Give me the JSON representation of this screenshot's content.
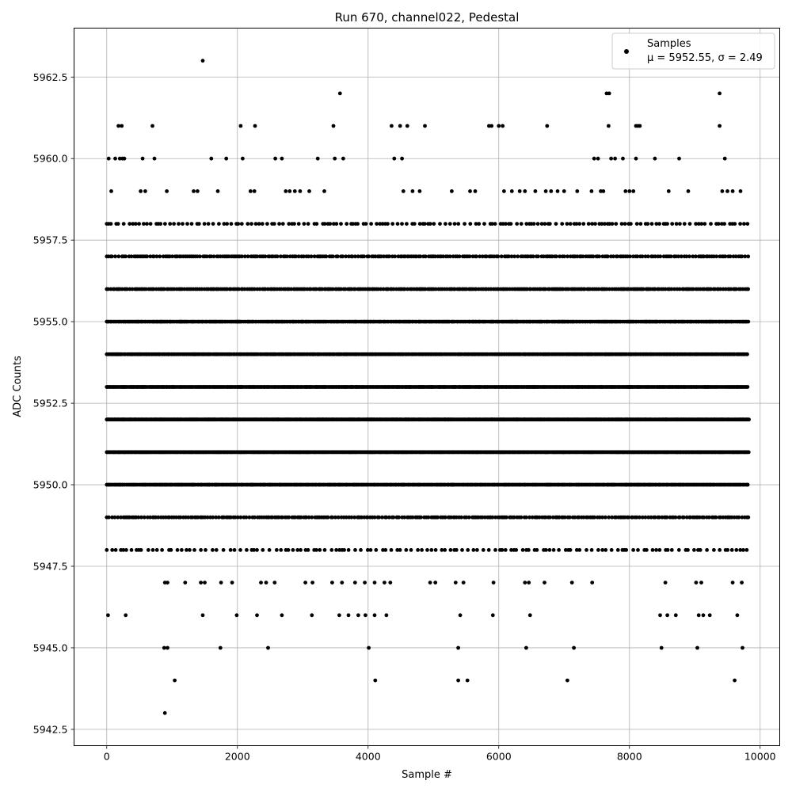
{
  "chart_data": {
    "type": "scatter",
    "title": "Run 670, channel022, Pedestal",
    "xlabel": "Sample #",
    "ylabel": "ADC Counts",
    "xlim": [
      -500,
      10300
    ],
    "ylim": [
      5942,
      5964
    ],
    "x_ticks": [
      0,
      2000,
      4000,
      6000,
      8000,
      10000
    ],
    "x_tick_labels": [
      "0",
      "2000",
      "4000",
      "6000",
      "8000",
      "10000"
    ],
    "y_ticks": [
      5942.5,
      5945.0,
      5947.5,
      5950.0,
      5952.5,
      5955.0,
      5957.5,
      5960.0,
      5962.5
    ],
    "y_tick_labels": [
      "5942.5",
      "5945.0",
      "5947.5",
      "5950.0",
      "5952.5",
      "5955.0",
      "5957.5",
      "5960.0",
      "5962.5"
    ],
    "grid": true,
    "legend": {
      "position": "top-right",
      "series_name": "Samples",
      "stats_text": "μ = 5952.55, σ = 2.49"
    },
    "series": [
      {
        "name": "Samples",
        "color": "#000000",
        "n_samples": 9830,
        "mean": 5952.55,
        "sigma": 2.49,
        "level_counts": [
          {
            "y": 5951,
            "x_step": 12
          },
          {
            "y": 5952,
            "x_step": 12
          },
          {
            "y": 5953,
            "x_step": 16
          },
          {
            "y": 5950,
            "x_step": 18
          },
          {
            "y": 5954,
            "x_step": 20
          },
          {
            "y": 5955,
            "x_step": 20
          },
          {
            "y": 5956,
            "x_step": 28
          },
          {
            "y": 5949,
            "x_step": 32
          },
          {
            "y": 5957,
            "x_step": 34
          },
          {
            "y": 5948,
            "x_step": 70
          },
          {
            "y": 5958,
            "x_step": 60
          }
        ],
        "points": [
          {
            "x": 1470,
            "y": 5963
          },
          {
            "x": 3570,
            "y": 5962
          },
          {
            "x": 7650,
            "y": 5962
          },
          {
            "x": 7690,
            "y": 5962
          },
          {
            "x": 9380,
            "y": 5962
          },
          {
            "x": 180,
            "y": 5961
          },
          {
            "x": 230,
            "y": 5961
          },
          {
            "x": 700,
            "y": 5961
          },
          {
            "x": 2050,
            "y": 5961
          },
          {
            "x": 2270,
            "y": 5961
          },
          {
            "x": 3470,
            "y": 5961
          },
          {
            "x": 4360,
            "y": 5961
          },
          {
            "x": 4490,
            "y": 5961
          },
          {
            "x": 4600,
            "y": 5961
          },
          {
            "x": 4870,
            "y": 5961
          },
          {
            "x": 5850,
            "y": 5961
          },
          {
            "x": 5890,
            "y": 5961
          },
          {
            "x": 6000,
            "y": 5961
          },
          {
            "x": 6060,
            "y": 5961
          },
          {
            "x": 6740,
            "y": 5961
          },
          {
            "x": 7680,
            "y": 5961
          },
          {
            "x": 8100,
            "y": 5961
          },
          {
            "x": 8130,
            "y": 5961
          },
          {
            "x": 8160,
            "y": 5961
          },
          {
            "x": 9380,
            "y": 5961
          },
          {
            "x": 30,
            "y": 5960
          },
          {
            "x": 130,
            "y": 5960
          },
          {
            "x": 200,
            "y": 5960
          },
          {
            "x": 240,
            "y": 5960
          },
          {
            "x": 270,
            "y": 5960
          },
          {
            "x": 550,
            "y": 5960
          },
          {
            "x": 730,
            "y": 5960
          },
          {
            "x": 1600,
            "y": 5960
          },
          {
            "x": 1830,
            "y": 5960
          },
          {
            "x": 2080,
            "y": 5960
          },
          {
            "x": 2580,
            "y": 5960
          },
          {
            "x": 2680,
            "y": 5960
          },
          {
            "x": 3230,
            "y": 5960
          },
          {
            "x": 3490,
            "y": 5960
          },
          {
            "x": 3620,
            "y": 5960
          },
          {
            "x": 4400,
            "y": 5960
          },
          {
            "x": 4520,
            "y": 5960
          },
          {
            "x": 7460,
            "y": 5960
          },
          {
            "x": 7520,
            "y": 5960
          },
          {
            "x": 7720,
            "y": 5960
          },
          {
            "x": 7780,
            "y": 5960
          },
          {
            "x": 7900,
            "y": 5960
          },
          {
            "x": 8100,
            "y": 5960
          },
          {
            "x": 8390,
            "y": 5960
          },
          {
            "x": 8760,
            "y": 5960
          },
          {
            "x": 9460,
            "y": 5960
          },
          {
            "x": 70,
            "y": 5959
          },
          {
            "x": 520,
            "y": 5959
          },
          {
            "x": 590,
            "y": 5959
          },
          {
            "x": 920,
            "y": 5959
          },
          {
            "x": 1330,
            "y": 5959
          },
          {
            "x": 1390,
            "y": 5959
          },
          {
            "x": 1700,
            "y": 5959
          },
          {
            "x": 2200,
            "y": 5959
          },
          {
            "x": 2260,
            "y": 5959
          },
          {
            "x": 2740,
            "y": 5959
          },
          {
            "x": 2800,
            "y": 5959
          },
          {
            "x": 2880,
            "y": 5959
          },
          {
            "x": 2960,
            "y": 5959
          },
          {
            "x": 3100,
            "y": 5959
          },
          {
            "x": 3330,
            "y": 5959
          },
          {
            "x": 4540,
            "y": 5959
          },
          {
            "x": 4680,
            "y": 5959
          },
          {
            "x": 4790,
            "y": 5959
          },
          {
            "x": 5280,
            "y": 5959
          },
          {
            "x": 5560,
            "y": 5959
          },
          {
            "x": 5640,
            "y": 5959
          },
          {
            "x": 6080,
            "y": 5959
          },
          {
            "x": 6200,
            "y": 5959
          },
          {
            "x": 6320,
            "y": 5959
          },
          {
            "x": 6400,
            "y": 5959
          },
          {
            "x": 6560,
            "y": 5959
          },
          {
            "x": 6720,
            "y": 5959
          },
          {
            "x": 6800,
            "y": 5959
          },
          {
            "x": 6900,
            "y": 5959
          },
          {
            "x": 7000,
            "y": 5959
          },
          {
            "x": 7200,
            "y": 5959
          },
          {
            "x": 7420,
            "y": 5959
          },
          {
            "x": 7560,
            "y": 5959
          },
          {
            "x": 7600,
            "y": 5959
          },
          {
            "x": 7940,
            "y": 5959
          },
          {
            "x": 8000,
            "y": 5959
          },
          {
            "x": 8060,
            "y": 5959
          },
          {
            "x": 8600,
            "y": 5959
          },
          {
            "x": 8900,
            "y": 5959
          },
          {
            "x": 9420,
            "y": 5959
          },
          {
            "x": 9500,
            "y": 5959
          },
          {
            "x": 9580,
            "y": 5959
          },
          {
            "x": 9700,
            "y": 5959
          },
          {
            "x": 890,
            "y": 5947
          },
          {
            "x": 930,
            "y": 5947
          },
          {
            "x": 1200,
            "y": 5947
          },
          {
            "x": 1440,
            "y": 5947
          },
          {
            "x": 1500,
            "y": 5947
          },
          {
            "x": 1750,
            "y": 5947
          },
          {
            "x": 1920,
            "y": 5947
          },
          {
            "x": 2360,
            "y": 5947
          },
          {
            "x": 2440,
            "y": 5947
          },
          {
            "x": 2570,
            "y": 5947
          },
          {
            "x": 3040,
            "y": 5947
          },
          {
            "x": 3150,
            "y": 5947
          },
          {
            "x": 3450,
            "y": 5947
          },
          {
            "x": 3600,
            "y": 5947
          },
          {
            "x": 3800,
            "y": 5947
          },
          {
            "x": 3950,
            "y": 5947
          },
          {
            "x": 4100,
            "y": 5947
          },
          {
            "x": 4250,
            "y": 5947
          },
          {
            "x": 4340,
            "y": 5947
          },
          {
            "x": 4950,
            "y": 5947
          },
          {
            "x": 5030,
            "y": 5947
          },
          {
            "x": 5340,
            "y": 5947
          },
          {
            "x": 5460,
            "y": 5947
          },
          {
            "x": 5920,
            "y": 5947
          },
          {
            "x": 6400,
            "y": 5947
          },
          {
            "x": 6460,
            "y": 5947
          },
          {
            "x": 6700,
            "y": 5947
          },
          {
            "x": 7120,
            "y": 5947
          },
          {
            "x": 7430,
            "y": 5947
          },
          {
            "x": 8550,
            "y": 5947
          },
          {
            "x": 9020,
            "y": 5947
          },
          {
            "x": 9100,
            "y": 5947
          },
          {
            "x": 9580,
            "y": 5947
          },
          {
            "x": 9720,
            "y": 5947
          },
          {
            "x": 20,
            "y": 5946
          },
          {
            "x": 290,
            "y": 5946
          },
          {
            "x": 1470,
            "y": 5946
          },
          {
            "x": 1990,
            "y": 5946
          },
          {
            "x": 2300,
            "y": 5946
          },
          {
            "x": 2680,
            "y": 5946
          },
          {
            "x": 3140,
            "y": 5946
          },
          {
            "x": 3560,
            "y": 5946
          },
          {
            "x": 3700,
            "y": 5946
          },
          {
            "x": 3850,
            "y": 5946
          },
          {
            "x": 3960,
            "y": 5946
          },
          {
            "x": 4100,
            "y": 5946
          },
          {
            "x": 4280,
            "y": 5946
          },
          {
            "x": 5410,
            "y": 5946
          },
          {
            "x": 5910,
            "y": 5946
          },
          {
            "x": 6480,
            "y": 5946
          },
          {
            "x": 8470,
            "y": 5946
          },
          {
            "x": 8580,
            "y": 5946
          },
          {
            "x": 8710,
            "y": 5946
          },
          {
            "x": 9060,
            "y": 5946
          },
          {
            "x": 9130,
            "y": 5946
          },
          {
            "x": 9230,
            "y": 5946
          },
          {
            "x": 9650,
            "y": 5946
          },
          {
            "x": 880,
            "y": 5945
          },
          {
            "x": 930,
            "y": 5945
          },
          {
            "x": 1740,
            "y": 5945
          },
          {
            "x": 2470,
            "y": 5945
          },
          {
            "x": 4010,
            "y": 5945
          },
          {
            "x": 5380,
            "y": 5945
          },
          {
            "x": 6420,
            "y": 5945
          },
          {
            "x": 7150,
            "y": 5945
          },
          {
            "x": 8490,
            "y": 5945
          },
          {
            "x": 9040,
            "y": 5945
          },
          {
            "x": 9730,
            "y": 5945
          },
          {
            "x": 1040,
            "y": 5944
          },
          {
            "x": 4110,
            "y": 5944
          },
          {
            "x": 5380,
            "y": 5944
          },
          {
            "x": 5520,
            "y": 5944
          },
          {
            "x": 7050,
            "y": 5944
          },
          {
            "x": 9610,
            "y": 5944
          },
          {
            "x": 890,
            "y": 5943
          }
        ]
      }
    ]
  }
}
